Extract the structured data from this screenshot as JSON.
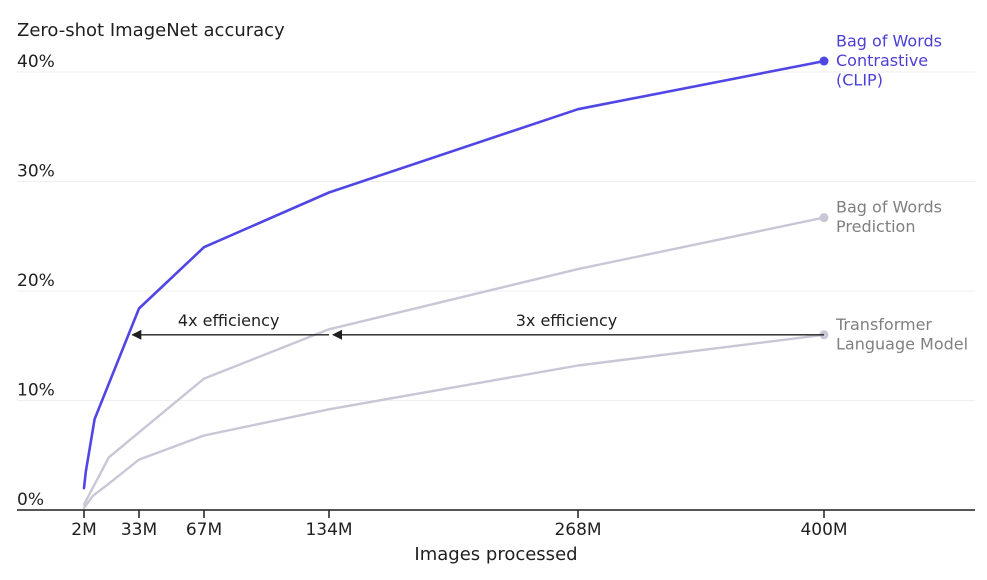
{
  "chart_data": {
    "type": "line",
    "title": "Zero-shot ImageNet accuracy",
    "xlabel": "Images processed",
    "x_ticks": [
      {
        "value": 2,
        "label": "2M"
      },
      {
        "value": 33,
        "label": "33M"
      },
      {
        "value": 67,
        "label": "67M"
      },
      {
        "value": 134,
        "label": "134M"
      },
      {
        "value": 268,
        "label": "268M"
      },
      {
        "value": 400,
        "label": "400M"
      }
    ],
    "y_ticks": [
      {
        "value": 0,
        "label": "0%"
      },
      {
        "value": 10,
        "label": "10%"
      },
      {
        "value": 20,
        "label": "20%"
      },
      {
        "value": 30,
        "label": "30%"
      },
      {
        "value": 40,
        "label": "40%"
      }
    ],
    "ylim": [
      0,
      42
    ],
    "grid": "horizontal",
    "series": [
      {
        "name_lines": [
          "Bag of Words",
          "Contrastive",
          "(CLIP)"
        ],
        "color": "#5046e4",
        "label_color": "#4b3fd8",
        "points": [
          [
            2,
            2
          ],
          [
            3,
            3.5
          ],
          [
            8,
            8.3
          ],
          [
            33,
            18.4
          ],
          [
            67,
            24
          ],
          [
            134,
            29
          ],
          [
            268,
            36.6
          ],
          [
            400,
            41
          ]
        ]
      },
      {
        "name_lines": [
          "Bag of Words",
          "Prediction"
        ],
        "color": "#c9c6d6",
        "label_color": "#808080",
        "points": [
          [
            2,
            0.5
          ],
          [
            16,
            4.8
          ],
          [
            67,
            12
          ],
          [
            134,
            16.5
          ],
          [
            268,
            22
          ],
          [
            400,
            26.7
          ]
        ]
      },
      {
        "name_lines": [
          "Transformer",
          "Language Model"
        ],
        "color": "#c9c6d6",
        "label_color": "#808080",
        "points": [
          [
            2,
            0.2
          ],
          [
            7,
            1.3
          ],
          [
            16,
            2.4
          ],
          [
            33,
            4.6
          ],
          [
            67,
            6.8
          ],
          [
            134,
            9.2
          ],
          [
            268,
            13.2
          ],
          [
            400,
            16
          ]
        ]
      }
    ],
    "annotations": [
      {
        "text": "4x efficiency",
        "from": 134,
        "to": 27,
        "y": 16
      },
      {
        "text": "3x efficiency",
        "from": 400,
        "to": 134,
        "y": 16
      }
    ]
  }
}
